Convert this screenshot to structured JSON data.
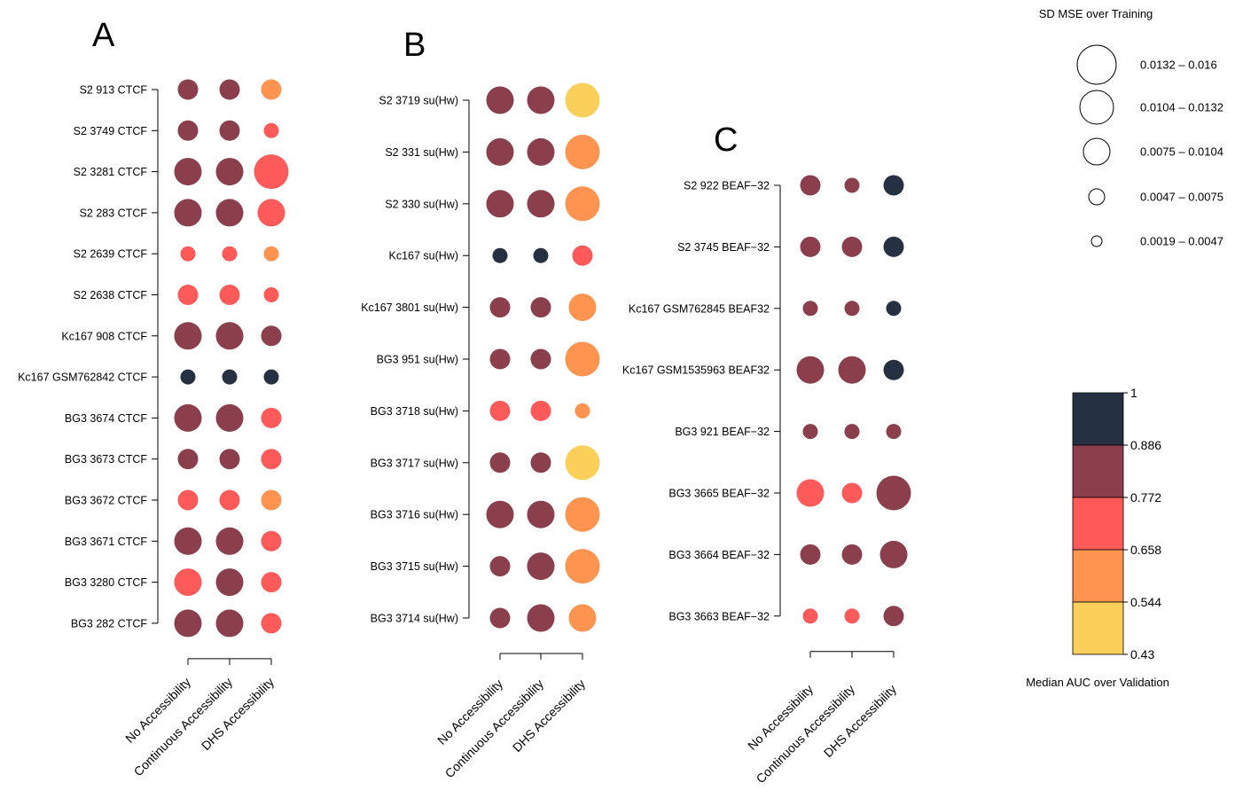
{
  "colors": {
    "band_1": "#253142",
    "band_2": "#8B3E4B",
    "band_3": "#FF5A5A",
    "band_4": "#FF9450",
    "band_5": "#FAD05A",
    "axis": "#000000"
  },
  "chart_data": [
    {
      "type": "scatter",
      "panel": "A",
      "columns": [
        "No Accessibility",
        "Continuous Accessibility",
        "DHS Accessibility"
      ],
      "rows": [
        {
          "label": "S2  913 CTCF",
          "cells": [
            {
              "c": 2,
              "s": 3
            },
            {
              "c": 2,
              "s": 3
            },
            {
              "c": 4,
              "s": 3
            }
          ]
        },
        {
          "label": "S2  3749 CTCF",
          "cells": [
            {
              "c": 2,
              "s": 3
            },
            {
              "c": 2,
              "s": 3
            },
            {
              "c": 3,
              "s": 2
            }
          ]
        },
        {
          "label": "S2  3281 CTCF",
          "cells": [
            {
              "c": 2,
              "s": 4
            },
            {
              "c": 2,
              "s": 4
            },
            {
              "c": 3,
              "s": 5
            }
          ]
        },
        {
          "label": "S2  283 CTCF",
          "cells": [
            {
              "c": 2,
              "s": 4
            },
            {
              "c": 2,
              "s": 4
            },
            {
              "c": 3,
              "s": 4
            }
          ]
        },
        {
          "label": "S2  2639 CTCF",
          "cells": [
            {
              "c": 3,
              "s": 2
            },
            {
              "c": 3,
              "s": 2
            },
            {
              "c": 4,
              "s": 2
            }
          ]
        },
        {
          "label": "S2  2638 CTCF",
          "cells": [
            {
              "c": 3,
              "s": 3
            },
            {
              "c": 3,
              "s": 3
            },
            {
              "c": 3,
              "s": 2
            }
          ]
        },
        {
          "label": "Kc167  908 CTCF",
          "cells": [
            {
              "c": 2,
              "s": 4
            },
            {
              "c": 2,
              "s": 4
            },
            {
              "c": 2,
              "s": 3
            }
          ]
        },
        {
          "label": "Kc167 GSM762842 CTCF",
          "cells": [
            {
              "c": 1,
              "s": 2
            },
            {
              "c": 1,
              "s": 2
            },
            {
              "c": 1,
              "s": 2
            }
          ]
        },
        {
          "label": "BG3  3674 CTCF",
          "cells": [
            {
              "c": 2,
              "s": 4
            },
            {
              "c": 2,
              "s": 4
            },
            {
              "c": 3,
              "s": 3
            }
          ]
        },
        {
          "label": "BG3  3673 CTCF",
          "cells": [
            {
              "c": 2,
              "s": 3
            },
            {
              "c": 2,
              "s": 3
            },
            {
              "c": 3,
              "s": 3
            }
          ]
        },
        {
          "label": "BG3  3672 CTCF",
          "cells": [
            {
              "c": 3,
              "s": 3
            },
            {
              "c": 3,
              "s": 3
            },
            {
              "c": 4,
              "s": 3
            }
          ]
        },
        {
          "label": "BG3  3671 CTCF",
          "cells": [
            {
              "c": 2,
              "s": 4
            },
            {
              "c": 2,
              "s": 4
            },
            {
              "c": 3,
              "s": 3
            }
          ]
        },
        {
          "label": "BG3  3280 CTCF",
          "cells": [
            {
              "c": 3,
              "s": 4
            },
            {
              "c": 2,
              "s": 4
            },
            {
              "c": 3,
              "s": 3
            }
          ]
        },
        {
          "label": "BG3  282 CTCF",
          "cells": [
            {
              "c": 2,
              "s": 4
            },
            {
              "c": 2,
              "s": 4
            },
            {
              "c": 3,
              "s": 3
            }
          ]
        }
      ]
    },
    {
      "type": "scatter",
      "panel": "B",
      "columns": [
        "No Accessibility",
        "Continuous Accessibility",
        "DHS Accessibility"
      ],
      "rows": [
        {
          "label": "S2  3719 su(Hw)",
          "cells": [
            {
              "c": 2,
              "s": 4
            },
            {
              "c": 2,
              "s": 4
            },
            {
              "c": 5,
              "s": 5
            }
          ]
        },
        {
          "label": "S2  331 su(Hw)",
          "cells": [
            {
              "c": 2,
              "s": 4
            },
            {
              "c": 2,
              "s": 4
            },
            {
              "c": 4,
              "s": 5
            }
          ]
        },
        {
          "label": "S2  330 su(Hw)",
          "cells": [
            {
              "c": 2,
              "s": 4
            },
            {
              "c": 2,
              "s": 4
            },
            {
              "c": 4,
              "s": 5
            }
          ]
        },
        {
          "label": "Kc167 su(Hw)",
          "cells": [
            {
              "c": 1,
              "s": 2
            },
            {
              "c": 1,
              "s": 2
            },
            {
              "c": 3,
              "s": 3
            }
          ]
        },
        {
          "label": "Kc167  3801 su(Hw)",
          "cells": [
            {
              "c": 2,
              "s": 3
            },
            {
              "c": 2,
              "s": 3
            },
            {
              "c": 4,
              "s": 4
            }
          ]
        },
        {
          "label": "BG3  951 su(Hw)",
          "cells": [
            {
              "c": 2,
              "s": 3
            },
            {
              "c": 2,
              "s": 3
            },
            {
              "c": 4,
              "s": 5
            }
          ]
        },
        {
          "label": "BG3  3718 su(Hw)",
          "cells": [
            {
              "c": 3,
              "s": 3
            },
            {
              "c": 3,
              "s": 3
            },
            {
              "c": 4,
              "s": 2
            }
          ]
        },
        {
          "label": "BG3  3717 su(Hw)",
          "cells": [
            {
              "c": 2,
              "s": 3
            },
            {
              "c": 2,
              "s": 3
            },
            {
              "c": 5,
              "s": 5
            }
          ]
        },
        {
          "label": "BG3  3716 su(Hw)",
          "cells": [
            {
              "c": 2,
              "s": 4
            },
            {
              "c": 2,
              "s": 4
            },
            {
              "c": 4,
              "s": 5
            }
          ]
        },
        {
          "label": "BG3  3715 su(Hw)",
          "cells": [
            {
              "c": 2,
              "s": 3
            },
            {
              "c": 2,
              "s": 4
            },
            {
              "c": 4,
              "s": 5
            }
          ]
        },
        {
          "label": "BG3  3714 su(Hw)",
          "cells": [
            {
              "c": 2,
              "s": 3
            },
            {
              "c": 2,
              "s": 4
            },
            {
              "c": 4,
              "s": 4
            }
          ]
        }
      ]
    },
    {
      "type": "scatter",
      "panel": "C",
      "columns": [
        "No Accessibility",
        "Continuous Accessibility",
        "DHS Accessibility"
      ],
      "rows": [
        {
          "label": "S2  922 BEAF−32",
          "cells": [
            {
              "c": 2,
              "s": 3
            },
            {
              "c": 2,
              "s": 2
            },
            {
              "c": 1,
              "s": 3
            }
          ]
        },
        {
          "label": "S2  3745 BEAF−32",
          "cells": [
            {
              "c": 2,
              "s": 3
            },
            {
              "c": 2,
              "s": 3
            },
            {
              "c": 1,
              "s": 3
            }
          ]
        },
        {
          "label": "Kc167 GSM762845 BEAF32",
          "cells": [
            {
              "c": 2,
              "s": 2
            },
            {
              "c": 2,
              "s": 2
            },
            {
              "c": 1,
              "s": 2
            }
          ]
        },
        {
          "label": "Kc167 GSM1535963 BEAF32",
          "cells": [
            {
              "c": 2,
              "s": 4
            },
            {
              "c": 2,
              "s": 4
            },
            {
              "c": 1,
              "s": 3
            }
          ]
        },
        {
          "label": "BG3  921 BEAF−32",
          "cells": [
            {
              "c": 2,
              "s": 2
            },
            {
              "c": 2,
              "s": 2
            },
            {
              "c": 2,
              "s": 2
            }
          ]
        },
        {
          "label": "BG3  3665 BEAF−32",
          "cells": [
            {
              "c": 3,
              "s": 4
            },
            {
              "c": 3,
              "s": 3
            },
            {
              "c": 2,
              "s": 5
            }
          ]
        },
        {
          "label": "BG3  3664 BEAF−32",
          "cells": [
            {
              "c": 2,
              "s": 3
            },
            {
              "c": 2,
              "s": 3
            },
            {
              "c": 2,
              "s": 4
            }
          ]
        },
        {
          "label": "BG3  3663 BEAF−32",
          "cells": [
            {
              "c": 3,
              "s": 2
            },
            {
              "c": 3,
              "s": 2
            },
            {
              "c": 2,
              "s": 3
            }
          ]
        }
      ]
    }
  ],
  "size_legend": {
    "title": "SD MSE over Training",
    "items": [
      {
        "label": "0.0132 – 0.016",
        "s": 5
      },
      {
        "label": "0.0104 – 0.0132",
        "s": 4
      },
      {
        "label": "0.0075 – 0.0104",
        "s": 3
      },
      {
        "label": "0.0047 – 0.0075",
        "s": 2
      },
      {
        "label": "0.0019 – 0.0047",
        "s": 1
      }
    ]
  },
  "color_legend": {
    "title": "Median AUC over Validation",
    "ticks": [
      "1",
      "0.886",
      "0.772",
      "0.658",
      "0.544",
      "0.43"
    ]
  }
}
